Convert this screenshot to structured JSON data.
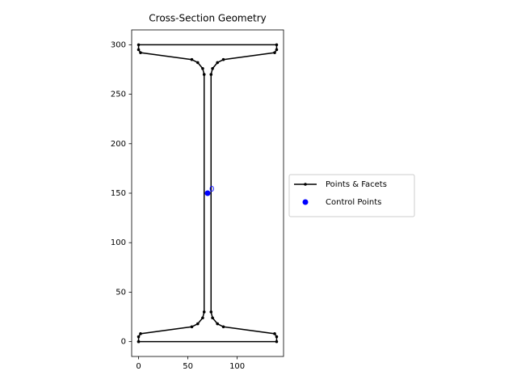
{
  "chart_data": {
    "type": "line",
    "title": "Cross-Section Geometry",
    "series": [
      {
        "name": "Points & Facets",
        "color": "#000000",
        "marker": true,
        "x": [
          0,
          140,
          140,
          138,
          86,
          80,
          75,
          73.5,
          73.5,
          75,
          80,
          86,
          138,
          140,
          140,
          0,
          0,
          2,
          54,
          60,
          65,
          66.5,
          66.5,
          65,
          60,
          54,
          2,
          0,
          0
        ],
        "values": [
          0,
          0,
          5,
          8,
          15,
          18,
          24,
          30,
          270,
          276,
          282,
          285,
          292,
          295,
          300,
          300,
          295,
          292,
          285,
          282,
          276,
          270,
          30,
          24,
          18,
          15,
          8,
          5,
          0
        ]
      },
      {
        "name": "Control Points",
        "color": "#0000ff",
        "marker": true,
        "line": false,
        "x": [
          70
        ],
        "values": [
          150
        ],
        "point_labels": [
          "0"
        ]
      }
    ],
    "xlim": [
      -7,
      147
    ],
    "ylim": [
      -15,
      315
    ],
    "xticks": [
      0,
      50,
      100
    ],
    "yticks": [
      0,
      50,
      100,
      150,
      200,
      250,
      300
    ],
    "grid": false,
    "legend": "right"
  }
}
